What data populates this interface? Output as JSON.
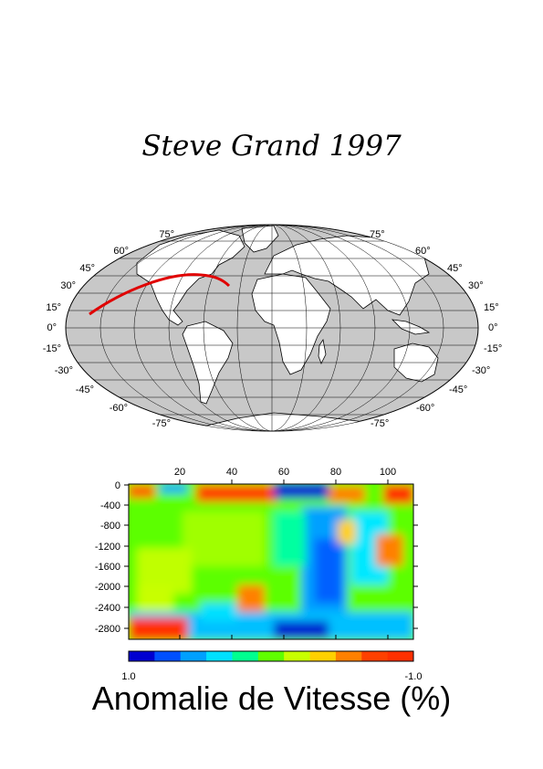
{
  "title": "Steve Grand 1997",
  "map": {
    "projection": "mollweide",
    "lat_labels_left": [
      "75°",
      "60°",
      "45°",
      "30°",
      "15°",
      "0°",
      "-15°",
      "-30°",
      "-45°",
      "-60°",
      "-75°"
    ],
    "lat_labels_right": [
      "75°",
      "60°",
      "45°",
      "30°",
      "15°",
      "0°",
      "-15°",
      "-30°",
      "-45°",
      "-60°",
      "-75°"
    ],
    "ocean_color": "#c8c8c8",
    "land_color": "#ffffff",
    "profile_color": "#e00000"
  },
  "chart_data": {
    "type": "heatmap",
    "x_ticks": [
      "20",
      "40",
      "60",
      "80",
      "100"
    ],
    "y_ticks": [
      "0",
      "-400",
      "-800",
      "-1200",
      "-1600",
      "-2000",
      "-2400",
      "-2800"
    ],
    "colorbar_min_label": "1.0",
    "colorbar_max_label": "-1.0",
    "colorbar_colors": [
      "#0000d0",
      "#0050ff",
      "#00a0ff",
      "#00e0ff",
      "#00ff90",
      "#60ff00",
      "#c8ff00",
      "#ffd000",
      "#ff8000",
      "#ff4000",
      "#ff3000"
    ]
  },
  "caption": "Anomalie de Vitesse (%)"
}
